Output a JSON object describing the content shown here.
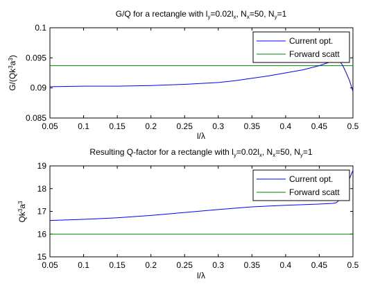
{
  "colors": {
    "current": "#0000ff",
    "forward": "#008000",
    "axis": "#000000",
    "background": "#ffffff"
  },
  "chart_data": [
    {
      "type": "line",
      "title_parts": {
        "a": "G/Q for a rectangle with l",
        "b": "y",
        "c": "=0.02l",
        "d": "x",
        "e": ", N",
        "f": "x",
        "g": "=50, N",
        "h": "y",
        "i": "=1"
      },
      "xlabel": "l/λ",
      "ylabel_parts": {
        "a": "G/(Qk",
        "b": "3",
        "c": "a",
        "d": "3",
        "e": ")"
      },
      "xlim": [
        0.05,
        0.5
      ],
      "ylim": [
        0.085,
        0.1
      ],
      "xticks": [
        "0.05",
        "0.1",
        "0.15",
        "0.2",
        "0.25",
        "0.3",
        "0.35",
        "0.4",
        "0.45",
        "0.5"
      ],
      "yticks": [
        "0.085",
        "0.09",
        "0.095",
        "0.1"
      ],
      "legend_position": "top-right",
      "grid": false,
      "series": [
        {
          "name": "Current opt.",
          "x": [
            0.05,
            0.1,
            0.15,
            0.2,
            0.25,
            0.3,
            0.325,
            0.35,
            0.375,
            0.4,
            0.425,
            0.45,
            0.46,
            0.47,
            0.48,
            0.485,
            0.49,
            0.495,
            0.5
          ],
          "y": [
            0.0902,
            0.0903,
            0.0903,
            0.0904,
            0.0906,
            0.0909,
            0.0912,
            0.0916,
            0.092,
            0.0925,
            0.093,
            0.0937,
            0.0941,
            0.0944,
            0.0945,
            0.0937,
            0.0925,
            0.0912,
            0.0894
          ]
        },
        {
          "name": "Forward scatt",
          "x": [
            0.05,
            0.5
          ],
          "y": [
            0.0937,
            0.0937
          ]
        }
      ]
    },
    {
      "type": "line",
      "title_parts": {
        "a": "Resulting Q-factor for a rectangle with l",
        "b": "y",
        "c": "=0.02l",
        "d": "x",
        "e": ", N",
        "f": "x",
        "g": "=50, N",
        "h": "y",
        "i": "=1"
      },
      "xlabel": "l/λ",
      "ylabel_parts": {
        "a": "Qk",
        "b": "3",
        "c": "a",
        "d": "3",
        "e": ""
      },
      "xlim": [
        0.05,
        0.5
      ],
      "ylim": [
        15,
        19
      ],
      "xticks": [
        "0.05",
        "0.1",
        "0.15",
        "0.2",
        "0.25",
        "0.3",
        "0.35",
        "0.4",
        "0.45",
        "0.5"
      ],
      "yticks": [
        "15",
        "16",
        "17",
        "18",
        "19"
      ],
      "legend_position": "top-right",
      "grid": false,
      "series": [
        {
          "name": "Current opt.",
          "x": [
            0.05,
            0.1,
            0.15,
            0.2,
            0.25,
            0.3,
            0.35,
            0.4,
            0.45,
            0.47,
            0.475,
            0.48,
            0.49,
            0.5
          ],
          "y": [
            16.6,
            16.65,
            16.72,
            16.82,
            16.95,
            17.08,
            17.2,
            17.27,
            17.32,
            17.35,
            17.38,
            17.5,
            18.1,
            18.8
          ]
        },
        {
          "name": "Forward scatt",
          "x": [
            0.05,
            0.5
          ],
          "y": [
            16.0,
            16.0
          ]
        }
      ]
    }
  ]
}
